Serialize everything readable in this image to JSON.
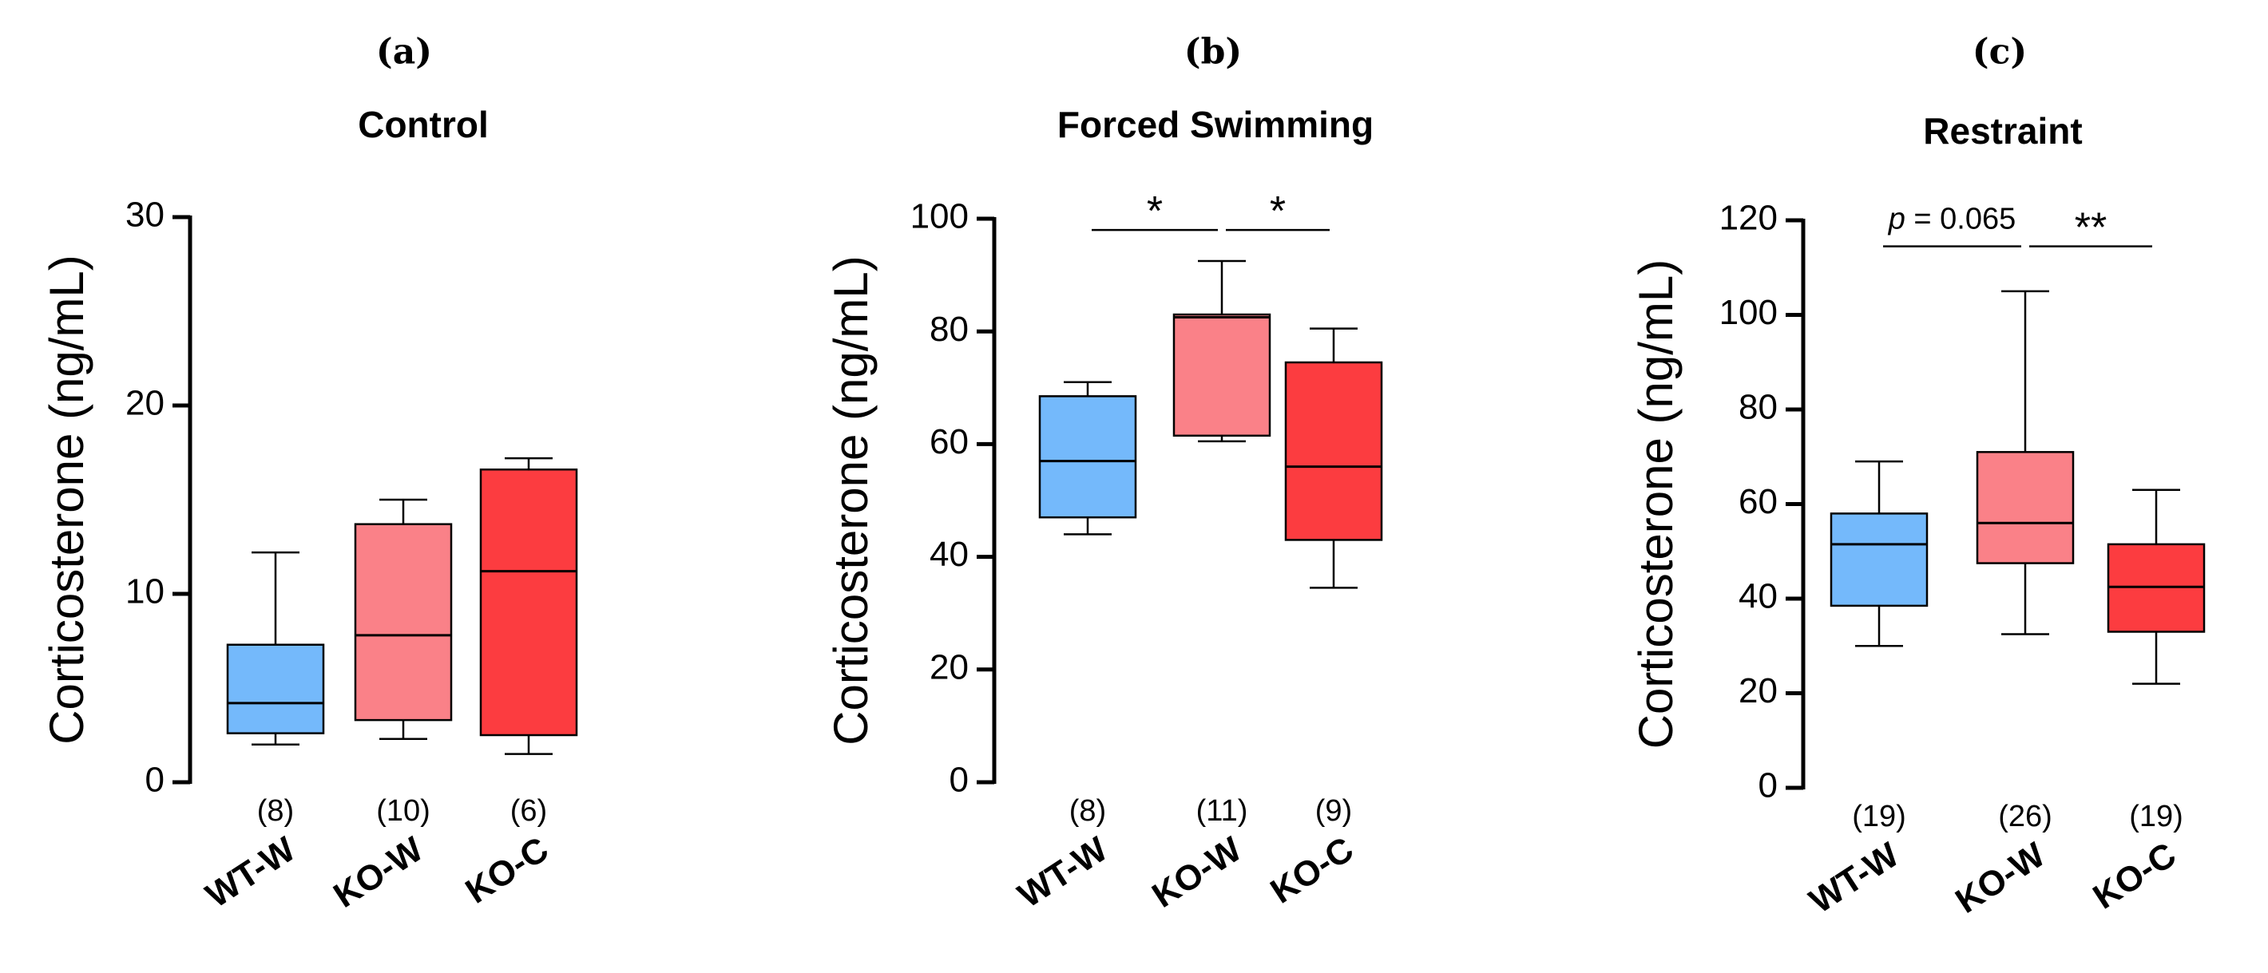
{
  "chart_data": [
    {
      "type": "box",
      "panel_label": "(a)",
      "title": "Control",
      "ylabel": "Corticosterone (ng/mL)",
      "ylim": [
        0,
        30
      ],
      "yticks": [
        0,
        10,
        20,
        30
      ],
      "categories": [
        "WT-W",
        "KO-W",
        "KO-C"
      ],
      "n_labels": [
        "(8)",
        "(10)",
        "(6)"
      ],
      "colors": [
        "#74b9fb",
        "#fa8188",
        "#fc3c40"
      ],
      "boxes": [
        {
          "min": 2.0,
          "q1": 2.6,
          "median": 4.2,
          "q3": 7.3,
          "max": 12.2
        },
        {
          "min": 2.3,
          "q1": 3.3,
          "median": 7.8,
          "q3": 13.7,
          "max": 15.0
        },
        {
          "min": 1.5,
          "q1": 2.5,
          "median": 11.2,
          "q3": 16.6,
          "max": 17.2
        }
      ],
      "annotations": []
    },
    {
      "type": "box",
      "panel_label": "(b)",
      "title": "Forced Swimming",
      "ylabel": "Corticosterone (ng/mL)",
      "ylim": [
        0,
        100
      ],
      "yticks": [
        0,
        20,
        40,
        60,
        80,
        100
      ],
      "categories": [
        "WT-W",
        "KO-W",
        "KO-C"
      ],
      "n_labels": [
        "(8)",
        "(11)",
        "(9)"
      ],
      "colors": [
        "#74b9fb",
        "#fa8188",
        "#fc3c40"
      ],
      "boxes": [
        {
          "min": 44.0,
          "q1": 47.0,
          "median": 57.0,
          "q3": 68.5,
          "max": 71.0
        },
        {
          "min": 60.5,
          "q1": 61.5,
          "median": 82.5,
          "q3": 83.0,
          "max": 92.5
        },
        {
          "min": 34.5,
          "q1": 43.0,
          "median": 56.0,
          "q3": 74.5,
          "max": 80.5
        }
      ],
      "annotations": [
        {
          "from": 0,
          "to": 1,
          "y": 98,
          "label": "*"
        },
        {
          "from": 1,
          "to": 2,
          "y": 98,
          "label": "*"
        }
      ]
    },
    {
      "type": "box",
      "panel_label": "(c)",
      "title": "Restraint",
      "ylabel": "Corticosterone (ng/mL)",
      "ylim": [
        0,
        120
      ],
      "yticks": [
        0,
        20,
        40,
        60,
        80,
        100,
        120
      ],
      "categories": [
        "WT-W",
        "KO-W",
        "KO-C"
      ],
      "n_labels": [
        "(19)",
        "(26)",
        "(19)"
      ],
      "colors": [
        "#74b9fb",
        "#fa8188",
        "#fc3c40"
      ],
      "boxes": [
        {
          "min": 30.0,
          "q1": 38.5,
          "median": 51.5,
          "q3": 58.0,
          "max": 69.0
        },
        {
          "min": 32.5,
          "q1": 47.5,
          "median": 56.0,
          "q3": 71.0,
          "max": 105.0
        },
        {
          "min": 22.0,
          "q1": 33.0,
          "median": 42.5,
          "q3": 51.5,
          "max": 63.0
        }
      ],
      "annotations": [
        {
          "from": 0,
          "to": 1,
          "y": 114.5,
          "label": "p = 0.065",
          "italic_prefix": "p",
          "rest": " = 0.065"
        },
        {
          "from": 1,
          "to": 2,
          "y": 114.5,
          "label": "**"
        }
      ]
    }
  ]
}
